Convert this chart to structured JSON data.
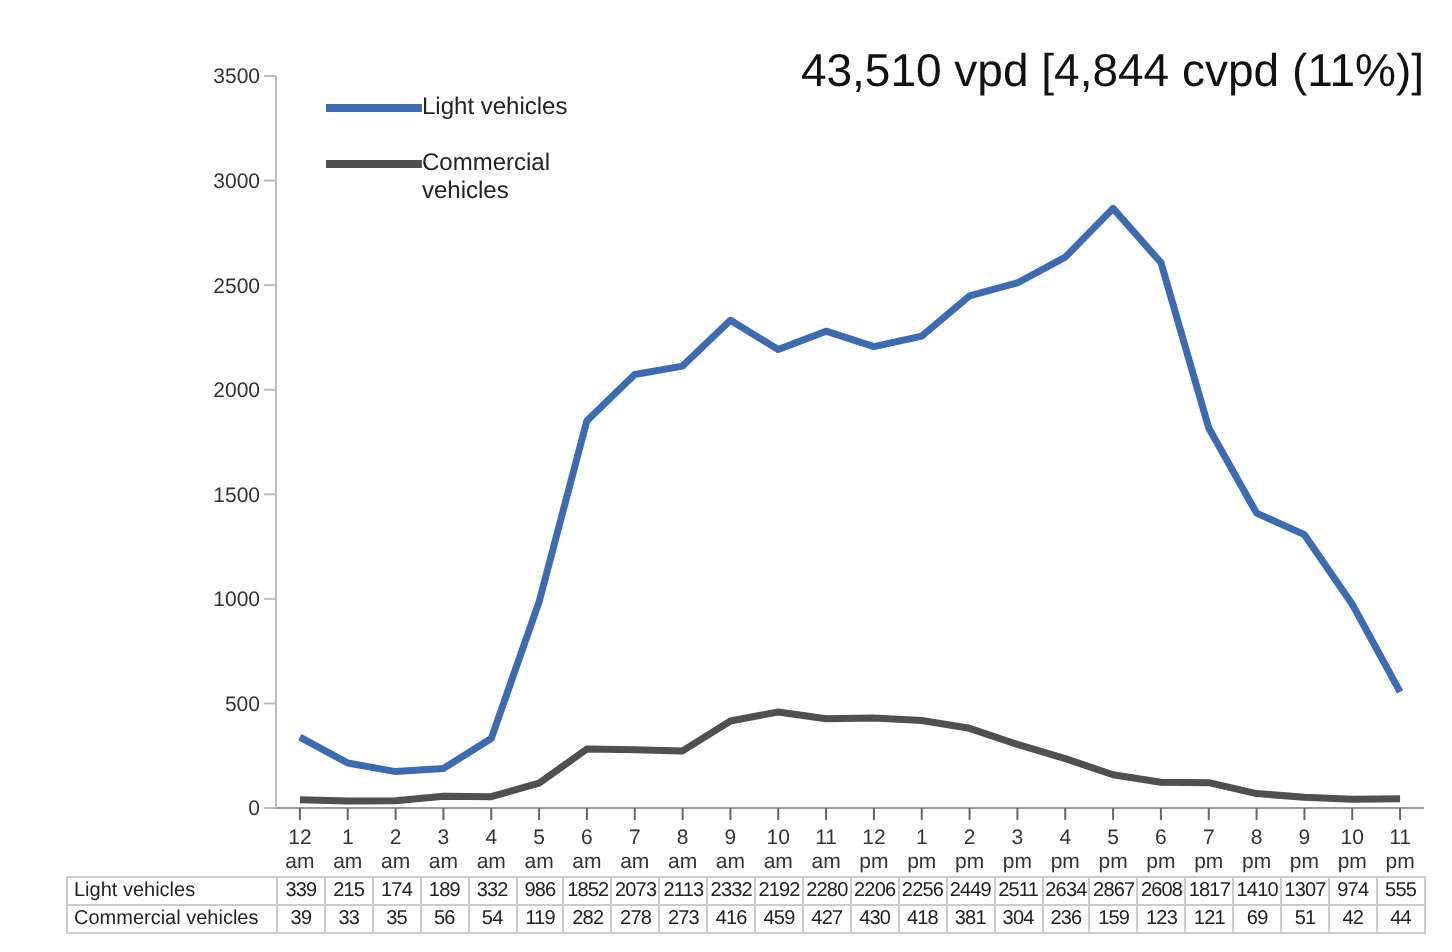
{
  "chart_data": {
    "type": "line",
    "title": "43,510 vpd [4,844 cvpd (11%)]",
    "categories": [
      "12 am",
      "1 am",
      "2 am",
      "3 am",
      "4 am",
      "5 am",
      "6 am",
      "7 am",
      "8 am",
      "9 am",
      "10 am",
      "11 am",
      "12 pm",
      "1 pm",
      "2 pm",
      "3 pm",
      "4 pm",
      "5 pm",
      "6 pm",
      "7 pm",
      "8 pm",
      "9 pm",
      "10 pm",
      "11 pm"
    ],
    "series": [
      {
        "name": "Light vehicles",
        "color": "#3d6bb3",
        "values": [
          339,
          215,
          174,
          189,
          332,
          986,
          1852,
          2073,
          2113,
          2332,
          2192,
          2280,
          2206,
          2256,
          2449,
          2511,
          2634,
          2867,
          2608,
          1817,
          1410,
          1307,
          974,
          555
        ]
      },
      {
        "name": "Commercial vehicles",
        "color": "#505050",
        "values": [
          39,
          33,
          35,
          56,
          54,
          119,
          282,
          278,
          273,
          416,
          459,
          427,
          430,
          418,
          381,
          304,
          236,
          159,
          123,
          121,
          69,
          51,
          42,
          44
        ]
      }
    ],
    "ylim": [
      0,
      3500
    ],
    "yticks": [
      0,
      500,
      1000,
      1500,
      2000,
      2500,
      3000,
      3500
    ],
    "grid": false,
    "legend": "top left",
    "marker": "none",
    "line_style": "solid",
    "data_labels": true
  }
}
